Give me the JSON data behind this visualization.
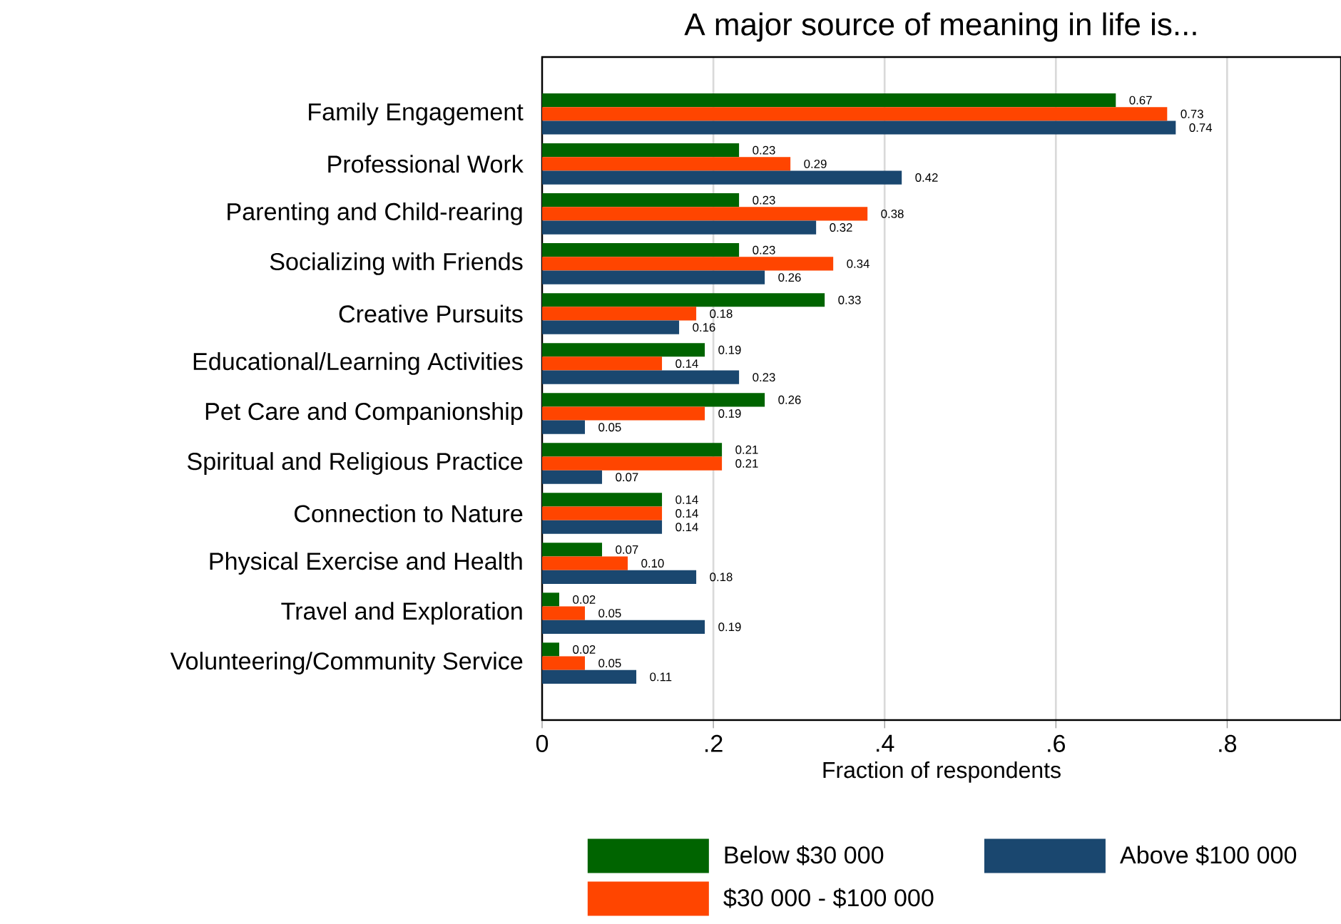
{
  "chart_data": {
    "type": "bar",
    "orientation": "horizontal",
    "title": "A major source of meaning in life is...",
    "xlabel": "Fraction of respondents",
    "categories": [
      "Family Engagement",
      "Professional Work",
      "Parenting and Child-rearing",
      "Socializing with Friends",
      "Creative Pursuits",
      "Educational/Learning Activities",
      "Pet Care and Companionship",
      "Spiritual and Religious Practice",
      "Connection to Nature",
      "Physical Exercise and Health",
      "Travel and Exploration",
      "Volunteering/Community Service"
    ],
    "series": [
      {
        "name": "Below $30 000",
        "color": "#006400",
        "values": [
          0.67,
          0.23,
          0.23,
          0.23,
          0.33,
          0.19,
          0.26,
          0.21,
          0.14,
          0.07,
          0.02,
          0.02
        ],
        "value_labels": [
          "0.67",
          "0.23",
          "0.23",
          "0.23",
          "0.33",
          "0.19",
          "0.26",
          "0.21",
          "0.14",
          "0.07",
          "0.02",
          "0.02"
        ]
      },
      {
        "name": "$30 000 - $100 000",
        "color": "#ff4500",
        "values": [
          0.73,
          0.29,
          0.38,
          0.34,
          0.18,
          0.14,
          0.19,
          0.21,
          0.14,
          0.1,
          0.05,
          0.05
        ],
        "value_labels": [
          "0.73",
          "0.29",
          "0.38",
          "0.34",
          "0.18",
          "0.14",
          "0.19",
          "0.21",
          "0.14",
          "0.10",
          "0.05",
          "0.05"
        ]
      },
      {
        "name": "Above $100 000",
        "color": "#1a476f",
        "values": [
          0.74,
          0.42,
          0.32,
          0.26,
          0.16,
          0.23,
          0.05,
          0.07,
          0.14,
          0.18,
          0.19,
          0.11
        ],
        "value_labels": [
          "0.74",
          "0.42",
          "0.32",
          "0.26",
          "0.16",
          "0.23",
          "0.05",
          "0.07",
          "0.14",
          "0.18",
          "0.19",
          "0.11"
        ]
      }
    ],
    "xlim": [
      0,
      0.933
    ],
    "xticks": [
      0,
      {
        "value": 0.2,
        "label": ".2"
      },
      {
        "value": 0.4,
        "label": ".4"
      },
      {
        "value": 0.6,
        "label": ".6"
      },
      {
        "value": 0.8,
        "label": ".8"
      }
    ],
    "grid": "x",
    "legend": "bottom"
  }
}
